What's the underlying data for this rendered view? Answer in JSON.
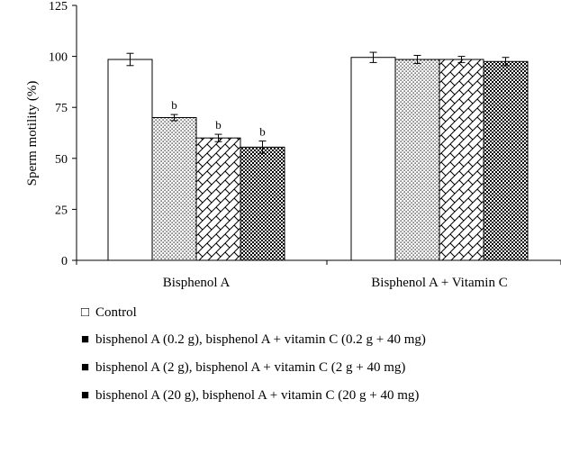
{
  "chart_data": {
    "type": "bar",
    "ylabel": "Sperm motility (%)",
    "ylim": [
      0,
      125
    ],
    "yticks": [
      "0",
      "25",
      "50",
      "75",
      "100",
      "125"
    ],
    "categories": [
      "Bisphenol A",
      "Bisphenol A + Vitamin C"
    ],
    "series": [
      {
        "pattern": "white",
        "values": [
          98.5,
          99.5
        ],
        "errors": [
          3.0,
          2.5
        ],
        "sig": [
          "",
          ""
        ]
      },
      {
        "pattern": "dots",
        "values": [
          70,
          98.5
        ],
        "errors": [
          1.5,
          2.0
        ],
        "sig": [
          "b",
          ""
        ]
      },
      {
        "pattern": "brick",
        "values": [
          60,
          98.5
        ],
        "errors": [
          1.8,
          1.5
        ],
        "sig": [
          "b",
          ""
        ]
      },
      {
        "pattern": "check",
        "values": [
          55.5,
          97.5
        ],
        "errors": [
          3.0,
          2.0
        ],
        "sig": [
          "b",
          ""
        ]
      }
    ]
  },
  "legend": [
    {
      "symbol": "□",
      "label": "Control"
    },
    {
      "symbol": "■",
      "label": "bisphenol A (0.2  g), bisphenol A + vitamin C (0.2  g + 40 mg)"
    },
    {
      "symbol": "■",
      "label": "bisphenol A (2  g), bisphenol A + vitamin C (2  g + 40 mg)"
    },
    {
      "symbol": "■",
      "label": "bisphenol A (20  g), bisphenol A + vitamin C (20  g + 40 mg)"
    }
  ]
}
